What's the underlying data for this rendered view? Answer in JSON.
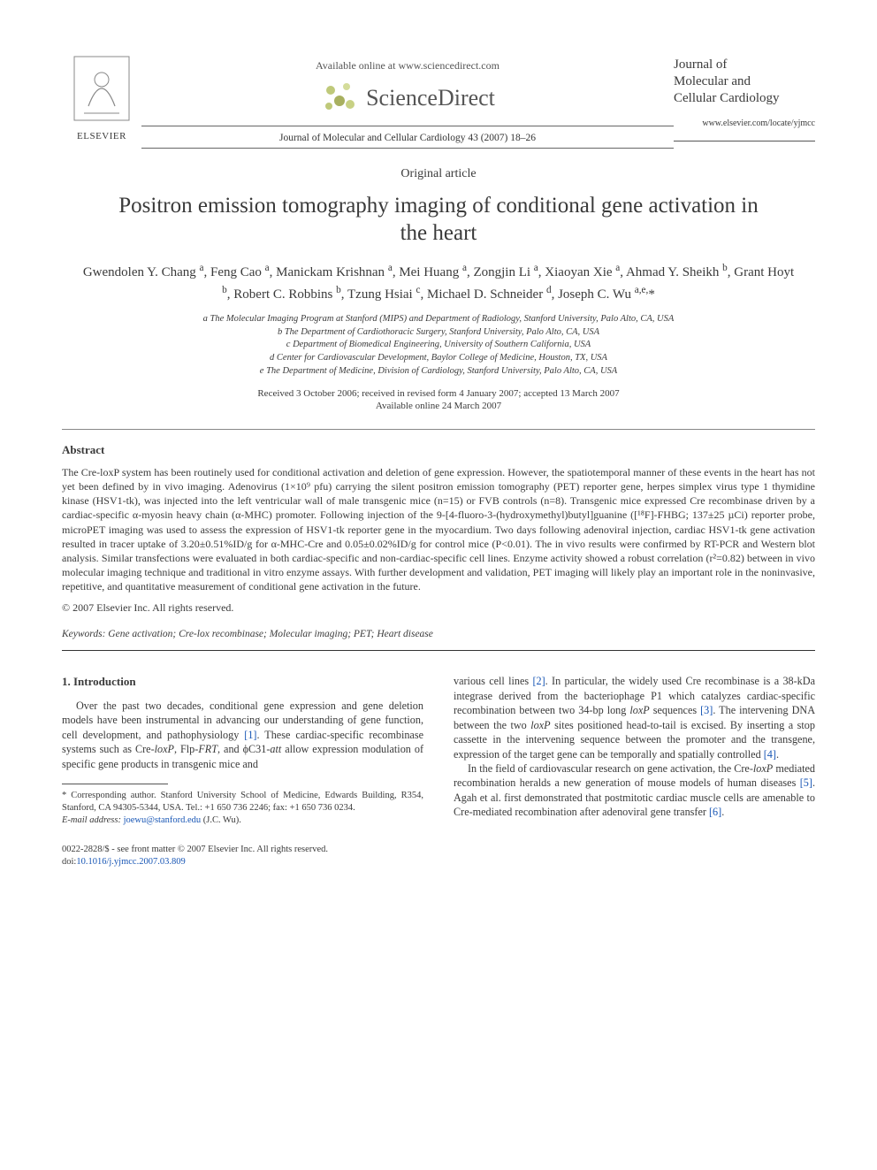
{
  "header": {
    "available_online": "Available online at www.sciencedirect.com",
    "sciencedirect": "ScienceDirect",
    "journal_ref": "Journal of Molecular and Cellular Cardiology 43 (2007) 18–26",
    "elsevier": "ELSEVIER",
    "journal_box_l1": "Journal of",
    "journal_box_l2": "Molecular and",
    "journal_box_l3": "Cellular Cardiology",
    "journal_site": "www.elsevier.com/locate/yjmcc"
  },
  "article": {
    "type": "Original article",
    "title": "Positron emission tomography imaging of conditional gene activation in the heart",
    "authors_html": "Gwendolen Y. Chang <sup>a</sup>, Feng Cao <sup>a</sup>, Manickam Krishnan <sup>a</sup>, Mei Huang <sup>a</sup>, Zongjin Li <sup>a</sup>, Xiaoyan Xie <sup>a</sup>, Ahmad Y. Sheikh <sup>b</sup>, Grant Hoyt <sup>b</sup>, Robert C. Robbins <sup>b</sup>, Tzung Hsiai <sup>c</sup>, Michael D. Schneider <sup>d</sup>, Joseph C. Wu <sup>a,e,</sup>*",
    "affiliations": [
      "a The Molecular Imaging Program at Stanford (MIPS) and Department of Radiology, Stanford University, Palo Alto, CA, USA",
      "b The Department of Cardiothoracic Surgery, Stanford University, Palo Alto, CA, USA",
      "c Department of Biomedical Engineering, University of Southern California, USA",
      "d Center for Cardiovascular Development, Baylor College of Medicine, Houston, TX, USA",
      "e The Department of Medicine, Division of Cardiology, Stanford University, Palo Alto, CA, USA"
    ],
    "dates_l1": "Received 3 October 2006; received in revised form 4 January 2007; accepted 13 March 2007",
    "dates_l2": "Available online 24 March 2007"
  },
  "abstract": {
    "heading": "Abstract",
    "body": "The Cre-loxP system has been routinely used for conditional activation and deletion of gene expression. However, the spatiotemporal manner of these events in the heart has not yet been defined by in vivo imaging. Adenovirus (1×10⁹ pfu) carrying the silent positron emission tomography (PET) reporter gene, herpes simplex virus type 1 thymidine kinase (HSV1-tk), was injected into the left ventricular wall of male transgenic mice (n=15) or FVB controls (n=8). Transgenic mice expressed Cre recombinase driven by a cardiac-specific α-myosin heavy chain (α-MHC) promoter. Following injection of the 9-[4-fluoro-3-(hydroxymethyl)butyl]guanine ([¹⁸F]-FHBG; 137±25 µCi) reporter probe, microPET imaging was used to assess the expression of HSV1-tk reporter gene in the myocardium. Two days following adenoviral injection, cardiac HSV1-tk gene activation resulted in tracer uptake of 3.20±0.51%ID/g for α-MHC-Cre and 0.05±0.02%ID/g for control mice (P<0.01). The in vivo results were confirmed by RT-PCR and Western blot analysis. Similar transfections were evaluated in both cardiac-specific and non-cardiac-specific cell lines. Enzyme activity showed a robust correlation (r²=0.82) between in vivo molecular imaging technique and traditional in vitro enzyme assays. With further development and validation, PET imaging will likely play an important role in the noninvasive, repetitive, and quantitative measurement of conditional gene activation in the future.",
    "copyright": "© 2007 Elsevier Inc. All rights reserved."
  },
  "keywords": {
    "label": "Keywords:",
    "text": " Gene activation; Cre-lox recombinase; Molecular imaging; PET; Heart disease"
  },
  "intro": {
    "heading": "1. Introduction",
    "col1_html": "Over the past two decades, conditional gene expression and gene deletion models have been instrumental in advancing our understanding of gene function, cell development, and pathophysiology <span class=\"ref-link\">[1]</span>. These cardiac-specific recombinase systems such as Cre-<span class=\"ital\">loxP</span>, Flp-<span class=\"ital\">FRT</span>, and ϕC31-<span class=\"ital\">att</span> allow expression modulation of specific gene products in transgenic mice and",
    "col2_p1_html": "various cell lines <span class=\"ref-link\">[2]</span>. In particular, the widely used Cre recombinase is a 38-kDa integrase derived from the bacteriophage P1 which catalyzes cardiac-specific recombination between two 34-bp long <span class=\"ital\">loxP</span> sequences <span class=\"ref-link\">[3]</span>. The intervening DNA between the two <span class=\"ital\">loxP</span> sites positioned head-to-tail is excised. By inserting a stop cassette in the intervening sequence between the promoter and the transgene, expression of the target gene can be temporally and spatially controlled <span class=\"ref-link\">[4]</span>.",
    "col2_p2_html": "In the field of cardiovascular research on gene activation, the Cre-<span class=\"ital\">loxP</span> mediated recombination heralds a new generation of mouse models of human diseases <span class=\"ref-link\">[5]</span>. Agah et al. first demonstrated that postmitotic cardiac muscle cells are amenable to Cre-mediated recombination after adenoviral gene transfer <span class=\"ref-link\">[6]</span>."
  },
  "footnote": {
    "corresponding": "* Corresponding author. Stanford University School of Medicine, Edwards Building, R354, Stanford, CA 94305-5344, USA. Tel.: +1 650 736 2246; fax: +1 650 736 0234.",
    "email_label": "E-mail address:",
    "email": "joewu@stanford.edu",
    "email_tail": " (J.C. Wu)."
  },
  "footer": {
    "line1": "0022-2828/$ - see front matter © 2007 Elsevier Inc. All rights reserved.",
    "doi_label": "doi:",
    "doi": "10.1016/j.yjmcc.2007.03.809"
  },
  "colors": {
    "link": "#1856b5",
    "text": "#3a3a3a",
    "rule": "#666666"
  }
}
